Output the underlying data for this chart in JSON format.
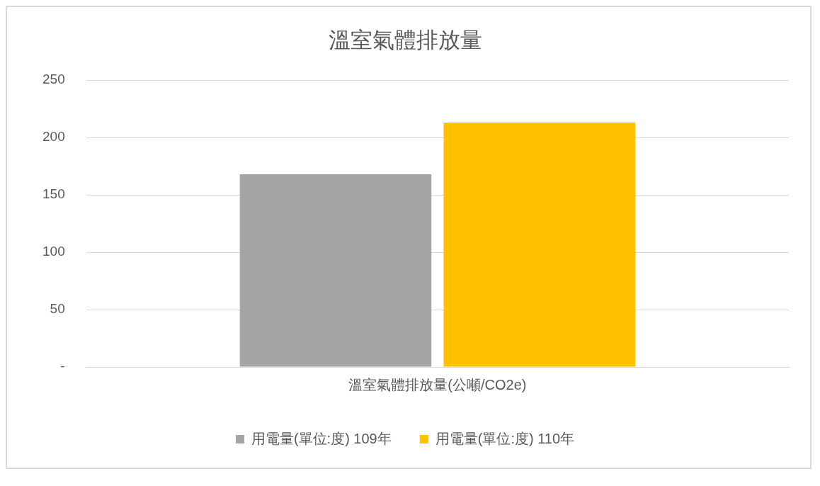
{
  "chart_data": {
    "type": "bar",
    "title": "溫室氣體排放量",
    "categories": [
      "溫室氣體排放量(公噸/CO2e)"
    ],
    "series": [
      {
        "name": "用電量(單位:度) 109年",
        "color": "#a5a5a5",
        "values": [
          168
        ]
      },
      {
        "name": "用電量(單位:度) 110年",
        "color": "#ffc000",
        "values": [
          213
        ]
      }
    ],
    "ylim": [
      0,
      250
    ],
    "yticks": [
      {
        "value": 0,
        "label": "-"
      },
      50,
      100,
      150,
      200,
      250
    ],
    "grid": "y",
    "legend": "bottom"
  }
}
